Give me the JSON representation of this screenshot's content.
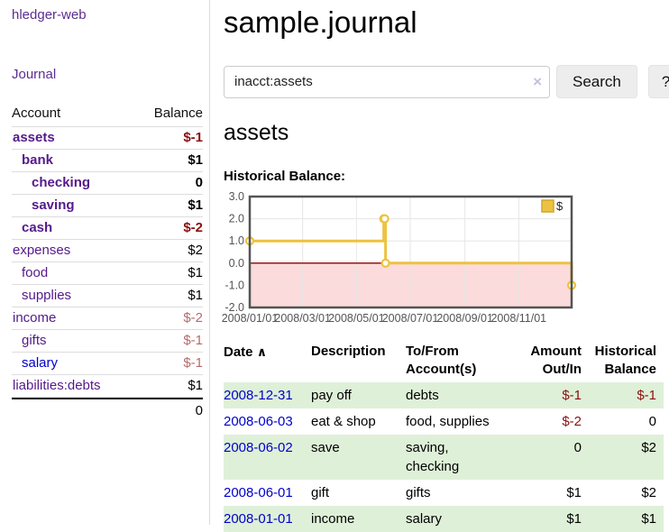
{
  "app": {
    "brand": "hledger-web",
    "journal_link": "Journal"
  },
  "colors": {
    "link_purple": "#551a8b",
    "link_blue": "#0000cc",
    "negative": "#8b1010",
    "negative_dim": "#b56b6b",
    "row_stripe_green": "#dff0d8",
    "chart_gold": "#edc240",
    "chart_gold_border": "#cfa72e",
    "chart_negative_fill": "#fbdbdb",
    "chart_zero_line": "#8b0000",
    "chart_border": "#545454",
    "chart_grid": "#e6e6e6",
    "chart_tick_text": "#545454"
  },
  "sidebar": {
    "headers": {
      "account": "Account",
      "balance": "Balance"
    },
    "accounts": [
      {
        "name": "assets",
        "indent": 1,
        "bold": true,
        "balance": "$-1",
        "negative": true,
        "dim": false,
        "blue": false
      },
      {
        "name": "bank",
        "indent": 2,
        "bold": true,
        "balance": "$1",
        "negative": false,
        "dim": false,
        "blue": false
      },
      {
        "name": "checking",
        "indent": 3,
        "bold": true,
        "balance": "0",
        "negative": false,
        "dim": false,
        "blue": false
      },
      {
        "name": "saving",
        "indent": 3,
        "bold": true,
        "balance": "$1",
        "negative": false,
        "dim": false,
        "blue": false
      },
      {
        "name": "cash",
        "indent": 2,
        "bold": true,
        "balance": "$-2",
        "negative": true,
        "dim": false,
        "blue": false
      },
      {
        "name": "expenses",
        "indent": 1,
        "bold": false,
        "balance": "$2",
        "negative": false,
        "dim": false,
        "blue": false
      },
      {
        "name": "food",
        "indent": 2,
        "bold": false,
        "balance": "$1",
        "negative": false,
        "dim": false,
        "blue": false
      },
      {
        "name": "supplies",
        "indent": 2,
        "bold": false,
        "balance": "$1",
        "negative": false,
        "dim": false,
        "blue": false
      },
      {
        "name": "income",
        "indent": 1,
        "bold": false,
        "balance": "$-2",
        "negative": true,
        "dim": true,
        "blue": false
      },
      {
        "name": "gifts",
        "indent": 2,
        "bold": false,
        "balance": "$-1",
        "negative": true,
        "dim": true,
        "blue": false
      },
      {
        "name": "salary",
        "indent": 2,
        "bold": false,
        "balance": "$-1",
        "negative": true,
        "dim": true,
        "blue": true
      },
      {
        "name": "liabilities:debts",
        "indent": 1,
        "bold": false,
        "balance": "$1",
        "negative": false,
        "dim": false,
        "blue": false
      }
    ],
    "total": "0"
  },
  "header": {
    "title": "sample.journal"
  },
  "search": {
    "value": "inacct:assets",
    "clear_icon": "×",
    "search_button": "Search",
    "help_button": "?"
  },
  "account_page": {
    "heading": "assets",
    "chart_label": "Historical Balance:"
  },
  "chart_data": {
    "type": "line",
    "step": true,
    "title": "Historical Balance",
    "series": [
      {
        "name": "$",
        "points": [
          [
            "2008-01-01",
            1
          ],
          [
            "2008-06-01",
            2
          ],
          [
            "2008-06-02",
            2
          ],
          [
            "2008-06-03",
            0
          ],
          [
            "2008-12-31",
            -1
          ]
        ]
      }
    ],
    "xlim": [
      "2008-01-01",
      "2008-12-31"
    ],
    "ylim": [
      -2,
      3
    ],
    "ytick_labels": [
      "3.0",
      "2.0",
      "1.0",
      "0.0",
      "-1.0",
      "-2.0"
    ],
    "ytick_values": [
      3,
      2,
      1,
      0,
      -1,
      -2
    ],
    "xticks": [
      {
        "label": "2008/01/01",
        "date": "2008-01-01"
      },
      {
        "label": "2008/03/01",
        "date": "2008-03-01"
      },
      {
        "label": "2008/05/01",
        "date": "2008-05-01"
      },
      {
        "label": "2008/07/01",
        "date": "2008-07-01"
      },
      {
        "label": "2008/09/01",
        "date": "2008-09-01"
      },
      {
        "label": "2008/11/01",
        "date": "2008-11-01"
      }
    ],
    "grid": true,
    "legend_position": "top-right",
    "negative_region_shaded": true
  },
  "register": {
    "columns": {
      "date": "Date",
      "sort_icon": "∧",
      "description": "Description",
      "tofrom": "To/From Account(s)",
      "amount": "Amount Out/In",
      "balance": "Historical Balance"
    },
    "rows": [
      {
        "date": "2008-12-31",
        "description": "pay off",
        "accounts": "debts",
        "amount": "$-1",
        "amount_neg": true,
        "balance": "$-1",
        "balance_neg": true
      },
      {
        "date": "2008-06-03",
        "description": "eat & shop",
        "accounts": "food, supplies",
        "amount": "$-2",
        "amount_neg": true,
        "balance": "0",
        "balance_neg": false
      },
      {
        "date": "2008-06-02",
        "description": "save",
        "accounts": "saving, checking",
        "amount": "0",
        "amount_neg": false,
        "balance": "$2",
        "balance_neg": false
      },
      {
        "date": "2008-06-01",
        "description": "gift",
        "accounts": "gifts",
        "amount": "$1",
        "amount_neg": false,
        "balance": "$2",
        "balance_neg": false
      },
      {
        "date": "2008-01-01",
        "description": "income",
        "accounts": "salary",
        "amount": "$1",
        "amount_neg": false,
        "balance": "$1",
        "balance_neg": false
      }
    ]
  }
}
